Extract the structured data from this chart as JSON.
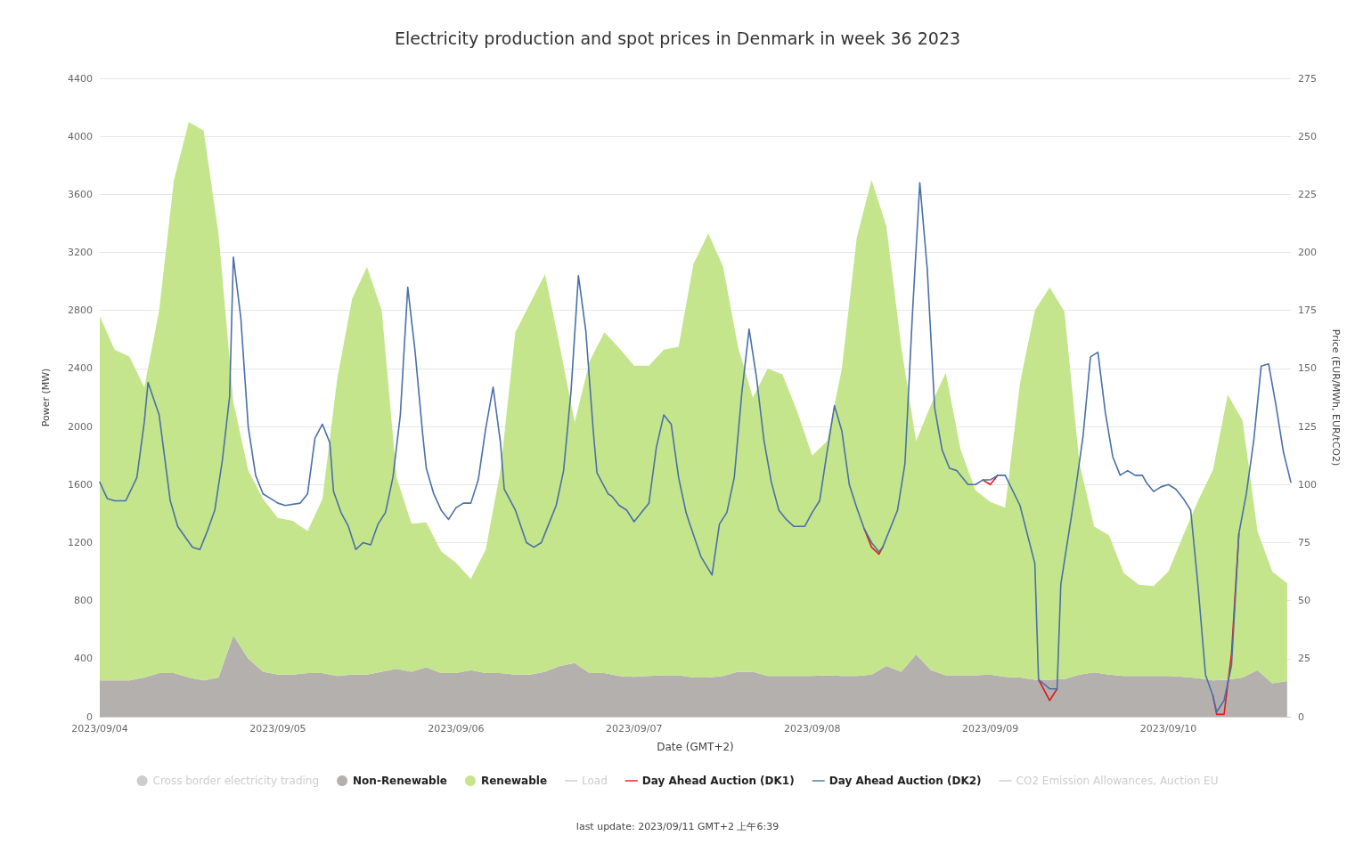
{
  "chart_data": {
    "type": "line",
    "title": "Electricity production and spot prices in Denmark in week 36 2023",
    "xlabel": "Date (GMT+2)",
    "ylabel": "Power (MW)",
    "y2label": "Price (EUR/MWh, EUR/tCO2)",
    "annotations": [
      "last update: 2023/09/11 GMT+2 上午6:39"
    ],
    "x": [
      "2023-09-04T00:00",
      "2023-09-04T01:00",
      "2023-09-04T02:00",
      "2023-09-04T03:30",
      "2023-09-04T05:00",
      "2023-09-04T06:00",
      "2023-09-04T06:30",
      "2023-09-04T08:00",
      "2023-09-04T09:30",
      "2023-09-04T10:30",
      "2023-09-04T12:30",
      "2023-09-04T13:30",
      "2023-09-04T14:30",
      "2023-09-04T15:30",
      "2023-09-04T16:30",
      "2023-09-04T17:30",
      "2023-09-04T18:00",
      "2023-09-04T19:00",
      "2023-09-04T20:00",
      "2023-09-04T21:00",
      "2023-09-04T22:00",
      "2023-09-04T23:00",
      "2023-09-05T00:00",
      "2023-09-05T01:00",
      "2023-09-05T03:00",
      "2023-09-05T04:00",
      "2023-09-05T05:00",
      "2023-09-05T06:00",
      "2023-09-05T07:00",
      "2023-09-05T07:30",
      "2023-09-05T08:30",
      "2023-09-05T09:30",
      "2023-09-05T10:30",
      "2023-09-05T11:30",
      "2023-09-05T12:30",
      "2023-09-05T13:30",
      "2023-09-05T14:30",
      "2023-09-05T15:30",
      "2023-09-05T16:30",
      "2023-09-05T17:30",
      "2023-09-05T18:30",
      "2023-09-05T19:30",
      "2023-09-05T20:00",
      "2023-09-05T21:00",
      "2023-09-05T22:00",
      "2023-09-05T23:00",
      "2023-09-06T00:00",
      "2023-09-06T01:00",
      "2023-09-06T02:00",
      "2023-09-06T03:00",
      "2023-09-06T04:00",
      "2023-09-06T05:00",
      "2023-09-06T06:00",
      "2023-09-06T06:30",
      "2023-09-06T08:00",
      "2023-09-06T09:30",
      "2023-09-06T10:30",
      "2023-09-06T11:30",
      "2023-09-06T12:30",
      "2023-09-06T13:30",
      "2023-09-06T14:30",
      "2023-09-06T15:30",
      "2023-09-06T16:30",
      "2023-09-06T17:30",
      "2023-09-06T18:30",
      "2023-09-06T19:00",
      "2023-09-06T20:30",
      "2023-09-06T21:00",
      "2023-09-06T22:00",
      "2023-09-06T23:00",
      "2023-09-07T00:00",
      "2023-09-07T01:00",
      "2023-09-07T02:00",
      "2023-09-07T03:00",
      "2023-09-07T04:00",
      "2023-09-07T05:00",
      "2023-09-07T06:00",
      "2023-09-07T07:00",
      "2023-09-07T07:30",
      "2023-09-07T09:00",
      "2023-09-07T10:30",
      "2023-09-07T11:30",
      "2023-09-07T12:30",
      "2023-09-07T13:30",
      "2023-09-07T14:30",
      "2023-09-07T15:30",
      "2023-09-07T16:30",
      "2023-09-07T17:30",
      "2023-09-07T18:30",
      "2023-09-07T19:30",
      "2023-09-07T20:30",
      "2023-09-07T21:30",
      "2023-09-07T23:00",
      "2023-09-08T00:00",
      "2023-09-08T01:00",
      "2023-09-08T02:00",
      "2023-09-08T03:00",
      "2023-09-08T04:00",
      "2023-09-08T05:00",
      "2023-09-08T06:00",
      "2023-09-08T07:00",
      "2023-09-08T08:00",
      "2023-09-08T09:00",
      "2023-09-08T09:30",
      "2023-09-08T11:30",
      "2023-09-08T12:30",
      "2023-09-08T13:30",
      "2023-09-08T14:30",
      "2023-09-08T15:30",
      "2023-09-08T16:30",
      "2023-09-08T17:30",
      "2023-09-08T18:30",
      "2023-09-08T19:30",
      "2023-09-08T21:00",
      "2023-09-08T22:00",
      "2023-09-08T23:00",
      "2023-09-09T00:00",
      "2023-09-09T01:00",
      "2023-09-09T02:00",
      "2023-09-09T04:00",
      "2023-09-09T06:00",
      "2023-09-09T06:30",
      "2023-09-09T08:00",
      "2023-09-09T09:00",
      "2023-09-09T09:30",
      "2023-09-09T11:30",
      "2023-09-09T12:30",
      "2023-09-09T13:30",
      "2023-09-09T14:30",
      "2023-09-09T15:30",
      "2023-09-09T16:30",
      "2023-09-09T17:30",
      "2023-09-09T18:30",
      "2023-09-09T19:30",
      "2023-09-09T20:30",
      "2023-09-09T21:00",
      "2023-09-09T22:00",
      "2023-09-09T23:00",
      "2023-09-10T00:00",
      "2023-09-10T01:00",
      "2023-09-10T02:00",
      "2023-09-10T03:00",
      "2023-09-10T04:00",
      "2023-09-10T05:00",
      "2023-09-10T06:00",
      "2023-09-10T06:30",
      "2023-09-10T07:30",
      "2023-09-10T08:30",
      "2023-09-10T09:30",
      "2023-09-10T10:30",
      "2023-09-10T11:30",
      "2023-09-10T12:30",
      "2023-09-10T13:30",
      "2023-09-10T14:30",
      "2023-09-10T15:30",
      "2023-09-10T16:30"
    ],
    "stacked": true,
    "series": [
      {
        "name": "Cross border electricity trading",
        "type": "area",
        "color": "#cccccc",
        "values": [
          null,
          null,
          null,
          null,
          null,
          null,
          null,
          null,
          null,
          null,
          null,
          null,
          null,
          null,
          null,
          null,
          null,
          null,
          null,
          null,
          null,
          null,
          null,
          null,
          null,
          null,
          null,
          null,
          null,
          null,
          null,
          null,
          null,
          null,
          null,
          null,
          null,
          null,
          null,
          null,
          null,
          null,
          null,
          null,
          null,
          null,
          null,
          null,
          null,
          null,
          null,
          null,
          null,
          null,
          null,
          null,
          null,
          null,
          null,
          null,
          null,
          null,
          null,
          null,
          null,
          null,
          null,
          null,
          null,
          null,
          null,
          null,
          null,
          null,
          null,
          null,
          null,
          null,
          null,
          null,
          null,
          null,
          null,
          null,
          null,
          null,
          null,
          null,
          null,
          null,
          null,
          null,
          null,
          null,
          null,
          null,
          null,
          null,
          null,
          null,
          null,
          null,
          null,
          null,
          null,
          null,
          null,
          null,
          null,
          null,
          null,
          null,
          null,
          null,
          null,
          null,
          null,
          null,
          null,
          null,
          null,
          null,
          null,
          null,
          null,
          null,
          null,
          null,
          null,
          null,
          null,
          null,
          null,
          null,
          null,
          null,
          null,
          null,
          null,
          null,
          null,
          null,
          null,
          null,
          null,
          null,
          null,
          null,
          null,
          null,
          null,
          null,
          null,
          null,
          null,
          null
        ]
      },
      {
        "name": "Non-Renewable",
        "type": "area",
        "color": "#b4b0ad",
        "x": [
          "2023-09-04T00:00",
          "2023-09-04T02:00",
          "2023-09-04T04:00",
          "2023-09-04T06:00",
          "2023-09-04T08:00",
          "2023-09-04T10:00",
          "2023-09-04T12:00",
          "2023-09-04T14:00",
          "2023-09-04T16:00",
          "2023-09-04T18:00",
          "2023-09-04T20:00",
          "2023-09-04T22:00",
          "2023-09-05T00:00",
          "2023-09-05T02:00",
          "2023-09-05T04:00",
          "2023-09-05T06:00",
          "2023-09-05T08:00",
          "2023-09-05T10:00",
          "2023-09-05T12:00",
          "2023-09-05T14:00",
          "2023-09-05T16:00",
          "2023-09-05T18:00",
          "2023-09-05T20:00",
          "2023-09-05T22:00",
          "2023-09-06T00:00",
          "2023-09-06T02:00",
          "2023-09-06T04:00",
          "2023-09-06T06:00",
          "2023-09-06T08:00",
          "2023-09-06T10:00",
          "2023-09-06T12:00",
          "2023-09-06T14:00",
          "2023-09-06T16:00",
          "2023-09-06T18:00",
          "2023-09-06T20:00",
          "2023-09-06T22:00",
          "2023-09-07T00:00",
          "2023-09-07T02:00",
          "2023-09-07T04:00",
          "2023-09-07T06:00",
          "2023-09-07T08:00",
          "2023-09-07T10:00",
          "2023-09-07T12:00",
          "2023-09-07T14:00",
          "2023-09-07T16:00",
          "2023-09-07T18:00",
          "2023-09-07T20:00",
          "2023-09-07T22:00",
          "2023-09-08T00:00",
          "2023-09-08T02:00",
          "2023-09-08T04:00",
          "2023-09-08T06:00",
          "2023-09-08T08:00",
          "2023-09-08T10:00",
          "2023-09-08T12:00",
          "2023-09-08T14:00",
          "2023-09-08T16:00",
          "2023-09-08T18:00",
          "2023-09-08T20:00",
          "2023-09-08T22:00",
          "2023-09-09T00:00",
          "2023-09-09T02:00",
          "2023-09-09T04:00",
          "2023-09-09T06:00",
          "2023-09-09T08:00",
          "2023-09-09T10:00",
          "2023-09-09T12:00",
          "2023-09-09T14:00",
          "2023-09-09T16:00",
          "2023-09-09T18:00",
          "2023-09-09T20:00",
          "2023-09-09T22:00",
          "2023-09-10T00:00",
          "2023-09-10T02:00",
          "2023-09-10T04:00",
          "2023-09-10T06:00",
          "2023-09-10T08:00",
          "2023-09-10T10:00",
          "2023-09-10T12:00",
          "2023-09-10T14:00",
          "2023-09-10T16:00"
        ],
        "values": [
          250,
          250,
          250,
          270,
          300,
          300,
          270,
          250,
          270,
          560,
          400,
          310,
          290,
          290,
          300,
          300,
          280,
          290,
          290,
          310,
          330,
          310,
          340,
          300,
          300,
          320,
          300,
          300,
          290,
          290,
          310,
          350,
          370,
          300,
          300,
          280,
          275,
          280,
          285,
          285,
          270,
          270,
          280,
          310,
          310,
          280,
          280,
          280,
          280,
          285,
          280,
          280,
          290,
          350,
          310,
          430,
          320,
          285,
          285,
          285,
          290,
          275,
          270,
          255,
          255,
          260,
          290,
          305,
          290,
          280,
          280,
          280,
          280,
          275,
          265,
          250,
          255,
          270,
          320,
          230,
          245
        ]
      },
      {
        "name": "Renewable",
        "type": "area",
        "color": "#c5e58c",
        "x": [
          "2023-09-04T00:00",
          "2023-09-04T02:00",
          "2023-09-04T04:00",
          "2023-09-04T06:00",
          "2023-09-04T08:00",
          "2023-09-04T10:00",
          "2023-09-04T12:00",
          "2023-09-04T14:00",
          "2023-09-04T16:00",
          "2023-09-04T18:00",
          "2023-09-04T20:00",
          "2023-09-04T22:00",
          "2023-09-05T00:00",
          "2023-09-05T02:00",
          "2023-09-05T04:00",
          "2023-09-05T06:00",
          "2023-09-05T08:00",
          "2023-09-05T10:00",
          "2023-09-05T12:00",
          "2023-09-05T14:00",
          "2023-09-05T16:00",
          "2023-09-05T18:00",
          "2023-09-05T20:00",
          "2023-09-05T22:00",
          "2023-09-06T00:00",
          "2023-09-06T02:00",
          "2023-09-06T04:00",
          "2023-09-06T06:00",
          "2023-09-06T08:00",
          "2023-09-06T10:00",
          "2023-09-06T12:00",
          "2023-09-06T14:00",
          "2023-09-06T16:00",
          "2023-09-06T18:00",
          "2023-09-06T20:00",
          "2023-09-06T22:00",
          "2023-09-07T00:00",
          "2023-09-07T02:00",
          "2023-09-07T04:00",
          "2023-09-07T06:00",
          "2023-09-07T08:00",
          "2023-09-07T10:00",
          "2023-09-07T12:00",
          "2023-09-07T14:00",
          "2023-09-07T16:00",
          "2023-09-07T18:00",
          "2023-09-07T20:00",
          "2023-09-07T22:00",
          "2023-09-08T00:00",
          "2023-09-08T02:00",
          "2023-09-08T04:00",
          "2023-09-08T06:00",
          "2023-09-08T08:00",
          "2023-09-08T10:00",
          "2023-09-08T12:00",
          "2023-09-08T14:00",
          "2023-09-08T16:00",
          "2023-09-08T18:00",
          "2023-09-08T20:00",
          "2023-09-08T22:00",
          "2023-09-09T00:00",
          "2023-09-09T02:00",
          "2023-09-09T04:00",
          "2023-09-09T06:00",
          "2023-09-09T08:00",
          "2023-09-09T10:00",
          "2023-09-09T12:00",
          "2023-09-09T14:00",
          "2023-09-09T16:00",
          "2023-09-09T18:00",
          "2023-09-09T20:00",
          "2023-09-09T22:00",
          "2023-09-10T00:00",
          "2023-09-10T02:00",
          "2023-09-10T04:00",
          "2023-09-10T06:00",
          "2023-09-10T08:00",
          "2023-09-10T10:00",
          "2023-09-10T12:00",
          "2023-09-10T14:00",
          "2023-09-10T16:00"
        ],
        "values": [
          2510,
          2280,
          2230,
          2000,
          2500,
          3400,
          3830,
          3790,
          3060,
          1610,
          1300,
          1190,
          1080,
          1060,
          980,
          1200,
          2050,
          2590,
          2810,
          2490,
          1320,
          1020,
          1000,
          840,
          760,
          630,
          850,
          1400,
          2360,
          2560,
          2740,
          2200,
          1660,
          2150,
          2350,
          2260,
          2145,
          2140,
          2245,
          2265,
          2850,
          3060,
          2820,
          2240,
          1890,
          2120,
          2080,
          1820,
          1520,
          1615,
          2120,
          3020,
          3410,
          3030,
          2240,
          1470,
          1830,
          2085,
          1555,
          1275,
          1190,
          1165,
          2030,
          2545,
          2705,
          2530,
          1460,
          1005,
          960,
          710,
          630,
          620,
          720,
          975,
          1225,
          1450,
          1965,
          1770,
          960,
          770,
          675
        ]
      },
      {
        "name": "Load",
        "color": "#cccccc",
        "values": [
          null,
          null,
          null,
          null,
          null,
          null,
          null,
          null,
          null,
          null,
          null,
          null,
          null,
          null,
          null,
          null,
          null,
          null,
          null,
          null,
          null,
          null,
          null,
          null,
          null,
          null,
          null,
          null,
          null,
          null,
          null,
          null,
          null,
          null,
          null,
          null,
          null,
          null,
          null,
          null,
          null,
          null,
          null,
          null,
          null,
          null,
          null,
          null,
          null,
          null,
          null,
          null,
          null,
          null,
          null,
          null,
          null,
          null,
          null,
          null,
          null,
          null,
          null,
          null,
          null,
          null,
          null,
          null,
          null,
          null,
          null,
          null,
          null,
          null,
          null,
          null,
          null,
          null,
          null,
          null,
          null,
          null,
          null,
          null,
          null,
          null,
          null,
          null,
          null,
          null,
          null,
          null,
          null,
          null,
          null,
          null,
          null,
          null,
          null,
          null,
          null,
          null,
          null,
          null,
          null,
          null,
          null,
          null,
          null,
          null,
          null,
          null,
          null,
          null,
          null,
          null,
          null,
          null,
          null,
          null,
          null,
          null,
          null,
          null,
          null,
          null,
          null,
          null,
          null,
          null,
          null,
          null,
          null,
          null,
          null,
          null,
          null,
          null,
          null,
          null,
          null,
          null,
          null,
          null,
          null,
          null,
          null,
          null,
          null,
          null,
          null,
          null,
          null,
          null,
          null,
          null
        ]
      },
      {
        "name": "Day Ahead Auction (DK1)",
        "type": "line",
        "axis": "y2",
        "color": "#e3191c",
        "values": [
          null,
          null,
          null,
          null,
          null,
          null,
          null,
          null,
          null,
          null,
          null,
          null,
          null,
          null,
          null,
          null,
          null,
          null,
          null,
          null,
          null,
          null,
          null,
          null,
          null,
          null,
          null,
          null,
          null,
          null,
          null,
          null,
          null,
          null,
          null,
          null,
          null,
          null,
          null,
          null,
          null,
          null,
          null,
          null,
          null,
          null,
          null,
          null,
          null,
          null,
          null,
          null,
          null,
          null,
          null,
          null,
          null,
          null,
          null,
          null,
          null,
          null,
          null,
          null,
          null,
          null,
          null,
          null,
          null,
          null,
          null,
          null,
          null,
          null,
          null,
          null,
          null,
          null,
          null,
          null,
          null,
          null,
          null,
          null,
          null,
          null,
          null,
          null,
          null,
          null,
          null,
          null,
          null,
          null,
          null,
          null,
          null,
          null,
          null,
          null,
          81,
          73,
          70,
          73,
          null,
          null,
          null,
          null,
          null,
          null,
          null,
          null,
          null,
          null,
          null,
          102,
          100,
          104,
          null,
          null,
          null,
          16,
          7,
          12,
          null,
          null,
          null,
          null,
          null,
          null,
          null,
          null,
          null,
          null,
          null,
          null,
          null,
          null,
          null,
          null,
          null,
          null,
          null,
          null,
          9,
          1,
          1,
          27,
          79,
          null,
          null,
          null,
          null,
          null,
          null,
          null
        ]
      },
      {
        "name": "Day Ahead Auction (DK2)",
        "type": "line",
        "axis": "y2",
        "color": "#4a70a8",
        "values": [
          101,
          94,
          93,
          93,
          103,
          127,
          144,
          130,
          93,
          82,
          73,
          72,
          80,
          89,
          110,
          138,
          198,
          172,
          125,
          104,
          96,
          94,
          92,
          91,
          92,
          96,
          120,
          126,
          118,
          97,
          88,
          82,
          72,
          75,
          74,
          83,
          88,
          103,
          130,
          185,
          157,
          122,
          107,
          96,
          89,
          85,
          90,
          92,
          92,
          102,
          124,
          142,
          118,
          98,
          89,
          75,
          73,
          75,
          83,
          91,
          106,
          140,
          190,
          166,
          123,
          105,
          96,
          95,
          91,
          89,
          84,
          88,
          92,
          116,
          130,
          126,
          103,
          88,
          83,
          69,
          61,
          83,
          88,
          103,
          139,
          167,
          146,
          119,
          101,
          89,
          85,
          82,
          82,
          88,
          93,
          114,
          134,
          123,
          100,
          90,
          81,
          75,
          71,
          73,
          89,
          109,
          173,
          230,
          193,
          133,
          115,
          107,
          106,
          100,
          100,
          102,
          102,
          104,
          104,
          91,
          66,
          16,
          12,
          12,
          57,
          98,
          121,
          155,
          157,
          131,
          112,
          104,
          106,
          104,
          104,
          101,
          97,
          99,
          100,
          98,
          94,
          89,
          56,
          18,
          9,
          2,
          7,
          22,
          79,
          96,
          119,
          151,
          152,
          134,
          114,
          101
        ]
      },
      {
        "name": "CO2 Emission Allowances, Auction EU",
        "axis": "y2",
        "color": "#cccccc",
        "values": [
          null,
          null,
          null,
          null,
          null,
          null,
          null,
          null,
          null,
          null,
          null,
          null,
          null,
          null,
          null,
          null,
          null,
          null,
          null,
          null,
          null,
          null,
          null,
          null,
          null,
          null,
          null,
          null,
          null,
          null,
          null,
          null,
          null,
          null,
          null,
          null,
          null,
          null,
          null,
          null,
          null,
          null,
          null,
          null,
          null,
          null,
          null,
          null,
          null,
          null,
          null,
          null,
          null,
          null,
          null,
          null,
          null,
          null,
          null,
          null,
          null,
          null,
          null,
          null,
          null,
          null,
          null,
          null,
          null,
          null,
          null,
          null,
          null,
          null,
          null,
          null,
          null,
          null,
          null,
          null,
          null,
          null,
          null,
          null,
          null,
          null,
          null,
          null,
          null,
          null,
          null,
          null,
          null,
          null,
          null,
          null,
          null,
          null,
          null,
          null,
          null,
          null,
          null,
          null,
          null,
          null,
          null,
          null,
          null,
          null,
          null,
          null,
          null,
          null,
          null,
          null,
          null,
          null,
          null,
          null,
          null,
          null,
          null,
          null,
          null,
          null,
          null,
          null,
          null,
          null,
          null,
          null,
          null,
          null,
          null,
          null,
          null,
          null,
          null,
          null,
          null,
          null,
          null,
          null,
          null,
          null,
          null,
          null,
          null,
          null,
          null,
          null,
          null,
          null,
          null,
          null
        ]
      }
    ],
    "xlim": [
      "2023-09-04T00:00",
      "2023-09-10T16:30"
    ],
    "xticks": [
      {
        "value": "2023-09-04",
        "label": "2023/09/04"
      },
      {
        "value": "2023-09-05",
        "label": "2023/09/05"
      },
      {
        "value": "2023-09-06",
        "label": "2023/09/06"
      },
      {
        "value": "2023-09-07",
        "label": "2023/09/07"
      },
      {
        "value": "2023-09-08",
        "label": "2023/09/08"
      },
      {
        "value": "2023-09-09",
        "label": "2023/09/09"
      },
      {
        "value": "2023-09-10",
        "label": "2023/09/10"
      }
    ],
    "ylim": [
      0,
      4400
    ],
    "yticks": [
      0,
      400,
      800,
      1200,
      1600,
      2000,
      2400,
      2800,
      3200,
      3600,
      4000,
      4400
    ],
    "y2lim": [
      0,
      275
    ],
    "y2ticks": [
      0,
      25,
      50,
      75,
      100,
      125,
      150,
      175,
      200,
      225,
      250,
      275
    ],
    "grid": "y",
    "legend": "bottom",
    "marker": "none",
    "line_style": "solid"
  }
}
